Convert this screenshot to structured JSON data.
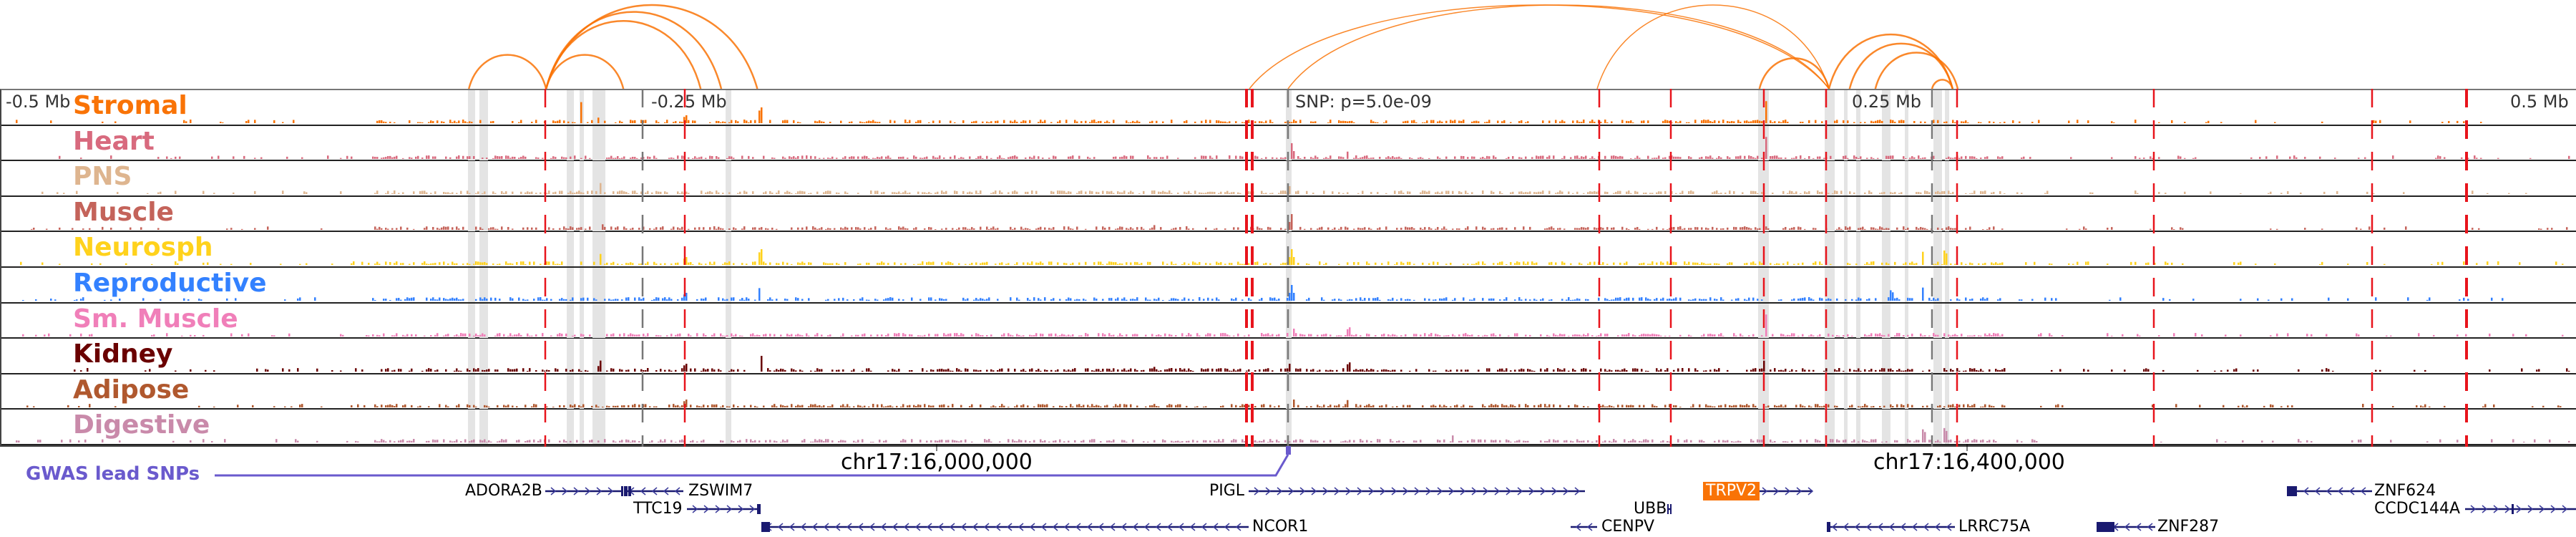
{
  "axis": {
    "left": "-0.5 Mb",
    "mid_left": "-0.25 Mb",
    "mid_right": "0.25 Mb",
    "right": "0.5 Mb"
  },
  "snp_label": "SNP: p=5.0e-09",
  "coordinates": [
    "chr17:16,000,000",
    "chr17:16,400,000"
  ],
  "gwas_label": "GWAS lead SNPs",
  "tracks": [
    {
      "name": "Stromal",
      "color": "#f97306"
    },
    {
      "name": "Heart",
      "color": "#d86a7e"
    },
    {
      "name": "PNS",
      "color": "#deb58f"
    },
    {
      "name": "Muscle",
      "color": "#c4635a"
    },
    {
      "name": "Neurosph",
      "color": "#ffd21c"
    },
    {
      "name": "Reproductive",
      "color": "#3381ff"
    },
    {
      "name": "Sm. Muscle",
      "color": "#f07fb9"
    },
    {
      "name": "Kidney",
      "color": "#6a0000"
    },
    {
      "name": "Adipose",
      "color": "#b0582e"
    },
    {
      "name": "Digestive",
      "color": "#c98aaa"
    }
  ],
  "genes": [
    {
      "name": "ADORA2B"
    },
    {
      "name": "ZSWIM7"
    },
    {
      "name": "TTC19"
    },
    {
      "name": "NCOR1"
    },
    {
      "name": "PIGL"
    },
    {
      "name": "UBB"
    },
    {
      "name": "CENPV"
    },
    {
      "name": "TRPV2",
      "highlight": "#f97306"
    },
    {
      "name": "LRRC75A"
    },
    {
      "name": "ZNF287"
    },
    {
      "name": "ZNF624"
    },
    {
      "name": "CCDC144A"
    }
  ],
  "loops_mb": [
    [
      -0.318,
      -0.288
    ],
    [
      -0.288,
      -0.206
    ],
    [
      -0.288,
      -0.22
    ],
    [
      -0.288,
      -0.228
    ],
    [
      -0.288,
      -0.258
    ],
    [
      -0.015,
      0.21
    ],
    [
      0,
      0.21
    ],
    [
      0.12,
      0.21
    ],
    [
      0.183,
      0.21
    ],
    [
      0.21,
      0.258
    ],
    [
      0.218,
      0.258
    ],
    [
      0.228,
      0.26
    ],
    [
      0.25,
      0.258
    ]
  ],
  "arc_color": "#f97306"
}
